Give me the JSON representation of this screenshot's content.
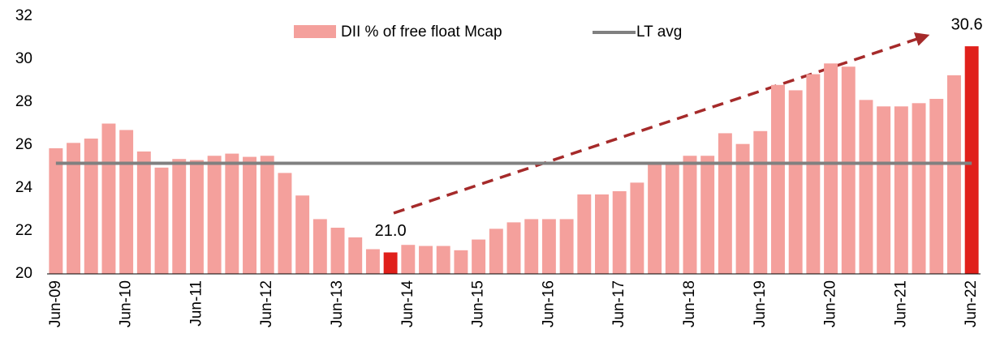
{
  "chart_data": {
    "type": "bar",
    "categories": [
      "Jun-09",
      null,
      null,
      null,
      "Jun-10",
      null,
      null,
      null,
      "Jun-11",
      null,
      null,
      null,
      "Jun-12",
      null,
      null,
      null,
      "Jun-13",
      null,
      null,
      null,
      "Jun-14",
      null,
      null,
      null,
      "Jun-15",
      null,
      null,
      null,
      "Jun-16",
      null,
      null,
      null,
      "Jun-17",
      null,
      null,
      null,
      "Jun-18",
      null,
      null,
      null,
      "Jun-19",
      null,
      null,
      null,
      "Jun-20",
      null,
      null,
      null,
      "Jun-21",
      null,
      null,
      null,
      "Jun-22"
    ],
    "series": [
      {
        "name": "DII % of free float Mcap",
        "color": "#f4a09c",
        "values": [
          25.85,
          26.1,
          26.3,
          27.0,
          26.7,
          25.7,
          24.95,
          25.35,
          25.3,
          25.5,
          25.6,
          25.45,
          25.5,
          24.7,
          23.65,
          22.55,
          22.15,
          21.7,
          21.15,
          21.0,
          21.35,
          21.3,
          21.3,
          21.1,
          21.6,
          22.1,
          22.4,
          22.55,
          22.55,
          22.55,
          23.7,
          23.7,
          23.85,
          24.25,
          25.1,
          25.1,
          25.5,
          25.5,
          26.55,
          26.05,
          26.65,
          28.8,
          28.55,
          29.3,
          29.8,
          29.65,
          28.1,
          27.8,
          27.8,
          27.95,
          28.15,
          29.25,
          30.6
        ],
        "colors": [
          "#f4a09c",
          "#f4a09c",
          "#f4a09c",
          "#f4a09c",
          "#f4a09c",
          "#f4a09c",
          "#f4a09c",
          "#f4a09c",
          "#f4a09c",
          "#f4a09c",
          "#f4a09c",
          "#f4a09c",
          "#f4a09c",
          "#f4a09c",
          "#f4a09c",
          "#f4a09c",
          "#f4a09c",
          "#f4a09c",
          "#f4a09c",
          "#e0201b",
          "#f4a09c",
          "#f4a09c",
          "#f4a09c",
          "#f4a09c",
          "#f4a09c",
          "#f4a09c",
          "#f4a09c",
          "#f4a09c",
          "#f4a09c",
          "#f4a09c",
          "#f4a09c",
          "#f4a09c",
          "#f4a09c",
          "#f4a09c",
          "#f4a09c",
          "#f4a09c",
          "#f4a09c",
          "#f4a09c",
          "#f4a09c",
          "#f4a09c",
          "#f4a09c",
          "#f4a09c",
          "#f4a09c",
          "#f4a09c",
          "#f4a09c",
          "#f4a09c",
          "#f4a09c",
          "#f4a09c",
          "#f4a09c",
          "#f4a09c",
          "#f4a09c",
          "#f4a09c",
          "#e0201b"
        ],
        "value_labels": [
          null,
          null,
          null,
          null,
          null,
          null,
          null,
          null,
          null,
          null,
          null,
          null,
          null,
          null,
          null,
          null,
          null,
          null,
          null,
          "21.0",
          null,
          null,
          null,
          null,
          null,
          null,
          null,
          null,
          null,
          null,
          null,
          null,
          null,
          null,
          null,
          null,
          null,
          null,
          null,
          null,
          null,
          null,
          null,
          null,
          null,
          null,
          null,
          null,
          null,
          null,
          null,
          null,
          "30.6"
        ]
      }
    ],
    "lt_avg": {
      "name": "LT avg",
      "value": 25.15,
      "color": "#808080"
    },
    "ylim": [
      20,
      32
    ],
    "yticks": [
      20,
      22,
      24,
      26,
      28,
      30,
      32
    ],
    "grid": false,
    "legend": "top"
  }
}
